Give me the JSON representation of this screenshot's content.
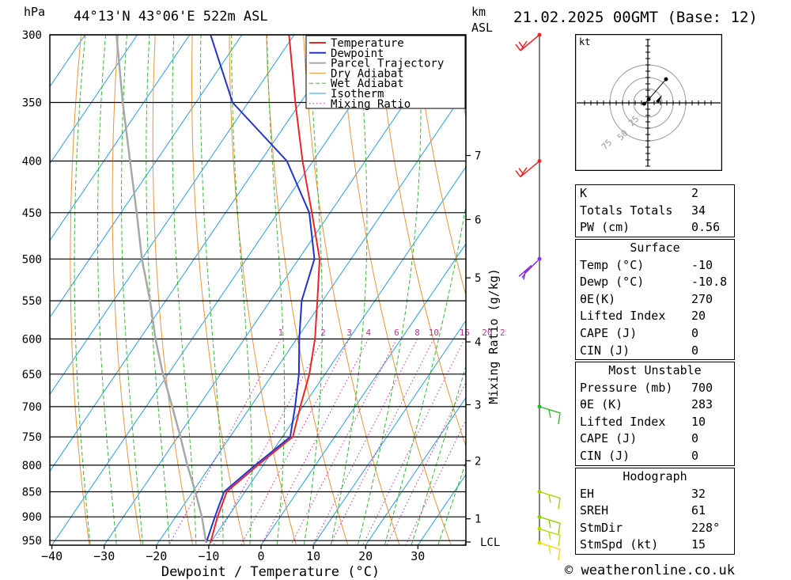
{
  "header": {
    "unit_left": "hPa",
    "location": "44°13'N 43°06'E 522m ASL",
    "unit_km": "km",
    "unit_asl": "ASL",
    "datetime": "21.02.2025 00GMT (Base: 12)"
  },
  "footer": {
    "credit": "© weatheronline.co.uk"
  },
  "chart_data": {
    "type": "line",
    "chart_kind": "skew-T log-P sounding",
    "xlabel": "Dewpoint / Temperature (°C)",
    "ylabel": "hPa",
    "right_axis_label": "Mixing Ratio (g/kg)",
    "x_ticks": [
      -40,
      -30,
      -20,
      -10,
      0,
      10,
      20,
      30
    ],
    "pressure_levels": [
      300,
      350,
      400,
      450,
      500,
      550,
      600,
      650,
      700,
      750,
      800,
      850,
      900,
      950
    ],
    "xlim": [
      -40,
      40
    ],
    "ylim": [
      960,
      300
    ],
    "height_km_ticks": [
      {
        "label": "7",
        "p": 395
      },
      {
        "label": "6",
        "p": 457
      },
      {
        "label": "5",
        "p": 522
      },
      {
        "label": "4",
        "p": 604
      },
      {
        "label": "3",
        "p": 697
      },
      {
        "label": "2",
        "p": 792
      },
      {
        "label": "1",
        "p": 904
      },
      {
        "label": "LCL",
        "p": 953
      }
    ],
    "mixing_ratio_labels": [
      "1",
      "2",
      "3",
      "4",
      "6",
      "8",
      "10",
      "15",
      "20",
      "25"
    ],
    "mixing_ratio_values": [
      1,
      2,
      3,
      4,
      6,
      8,
      10,
      15,
      20,
      25
    ],
    "legend": [
      "Temperature",
      "Dewpoint",
      "Parcel Trajectory",
      "Dry Adiabat",
      "Wet Adiabat",
      "Isotherm",
      "Mixing Ratio"
    ],
    "legend_position": "top-right",
    "series": [
      {
        "name": "Temperature",
        "color": "#e8262a",
        "points": [
          [
            955,
            -10
          ],
          [
            900,
            -12
          ],
          [
            850,
            -13.5
          ],
          [
            800,
            -11
          ],
          [
            750,
            -8
          ],
          [
            700,
            -10.5
          ],
          [
            650,
            -13
          ],
          [
            600,
            -16.5
          ],
          [
            550,
            -21
          ],
          [
            500,
            -26
          ],
          [
            450,
            -33.5
          ],
          [
            400,
            -42
          ],
          [
            350,
            -51
          ],
          [
            300,
            -61
          ]
        ]
      },
      {
        "name": "Dewpoint",
        "color": "#2233cc",
        "points": [
          [
            955,
            -10.8
          ],
          [
            900,
            -12.5
          ],
          [
            850,
            -14
          ],
          [
            800,
            -11.5
          ],
          [
            750,
            -8.5
          ],
          [
            700,
            -11.5
          ],
          [
            650,
            -15
          ],
          [
            600,
            -19.5
          ],
          [
            550,
            -24
          ],
          [
            500,
            -27
          ],
          [
            450,
            -34
          ],
          [
            400,
            -45
          ],
          [
            350,
            -63
          ],
          [
            300,
            -76
          ]
        ]
      },
      {
        "name": "Parcel Trajectory",
        "color": "#a8a8a8",
        "points": [
          [
            955,
            -10.8
          ],
          [
            900,
            -15
          ],
          [
            850,
            -19.5
          ],
          [
            800,
            -24.5
          ],
          [
            750,
            -29.5
          ],
          [
            700,
            -35
          ],
          [
            650,
            -41
          ],
          [
            600,
            -47
          ],
          [
            550,
            -53
          ],
          [
            500,
            -60
          ],
          [
            450,
            -67
          ],
          [
            400,
            -75
          ],
          [
            350,
            -84
          ],
          [
            300,
            -94
          ]
        ]
      }
    ],
    "colors": {
      "temperature": "#e8262a",
      "dewpoint": "#2233cc",
      "parcel": "#a8a8a8",
      "dry_adiabat": "#e8963a",
      "wet_adiabat": "#35b835",
      "isotherm": "#2a9ee0",
      "mixing_ratio": "#c0309a"
    }
  },
  "wind_barbs": [
    {
      "p": 300,
      "color": "#e8262a"
    },
    {
      "p": 400,
      "color": "#e8262a"
    },
    {
      "p": 500,
      "color": "#8a2be2"
    },
    {
      "p": 700,
      "color": "#22bb22"
    },
    {
      "p": 850,
      "color": "#aacc00"
    },
    {
      "p": 900,
      "color": "#88cc00"
    },
    {
      "p": 925,
      "color": "#aadd00"
    },
    {
      "p": 955,
      "color": "#e8d800"
    }
  ],
  "hodograph": {
    "unit": "kt",
    "ring_labels": [
      "25",
      "50",
      "75"
    ],
    "points": [
      [
        -4,
        -1
      ],
      [
        1,
        4
      ],
      [
        20,
        26
      ]
    ]
  },
  "indices": {
    "general": [
      {
        "key": "K",
        "value": "2"
      },
      {
        "key": "Totals Totals",
        "value": "34"
      },
      {
        "key": "PW (cm)",
        "value": "0.56"
      }
    ],
    "surface": {
      "title": "Surface",
      "rows": [
        {
          "key": "Temp (°C)",
          "value": "-10"
        },
        {
          "key": "Dewp (°C)",
          "value": "-10.8"
        },
        {
          "key": "θE(K)",
          "value": "270"
        },
        {
          "key": "Lifted Index",
          "value": "20"
        },
        {
          "key": "CAPE (J)",
          "value": "0"
        },
        {
          "key": "CIN (J)",
          "value": "0"
        }
      ]
    },
    "most_unstable": {
      "title": "Most Unstable",
      "rows": [
        {
          "key": "Pressure (mb)",
          "value": "700"
        },
        {
          "key": "θE (K)",
          "value": "283"
        },
        {
          "key": "Lifted Index",
          "value": "10"
        },
        {
          "key": "CAPE (J)",
          "value": "0"
        },
        {
          "key": "CIN (J)",
          "value": "0"
        }
      ]
    },
    "hodograph_params": {
      "title": "Hodograph",
      "rows": [
        {
          "key": "EH",
          "value": "32"
        },
        {
          "key": "SREH",
          "value": "61"
        },
        {
          "key": "StmDir",
          "value": "228°"
        },
        {
          "key": "StmSpd (kt)",
          "value": "15"
        }
      ]
    }
  }
}
